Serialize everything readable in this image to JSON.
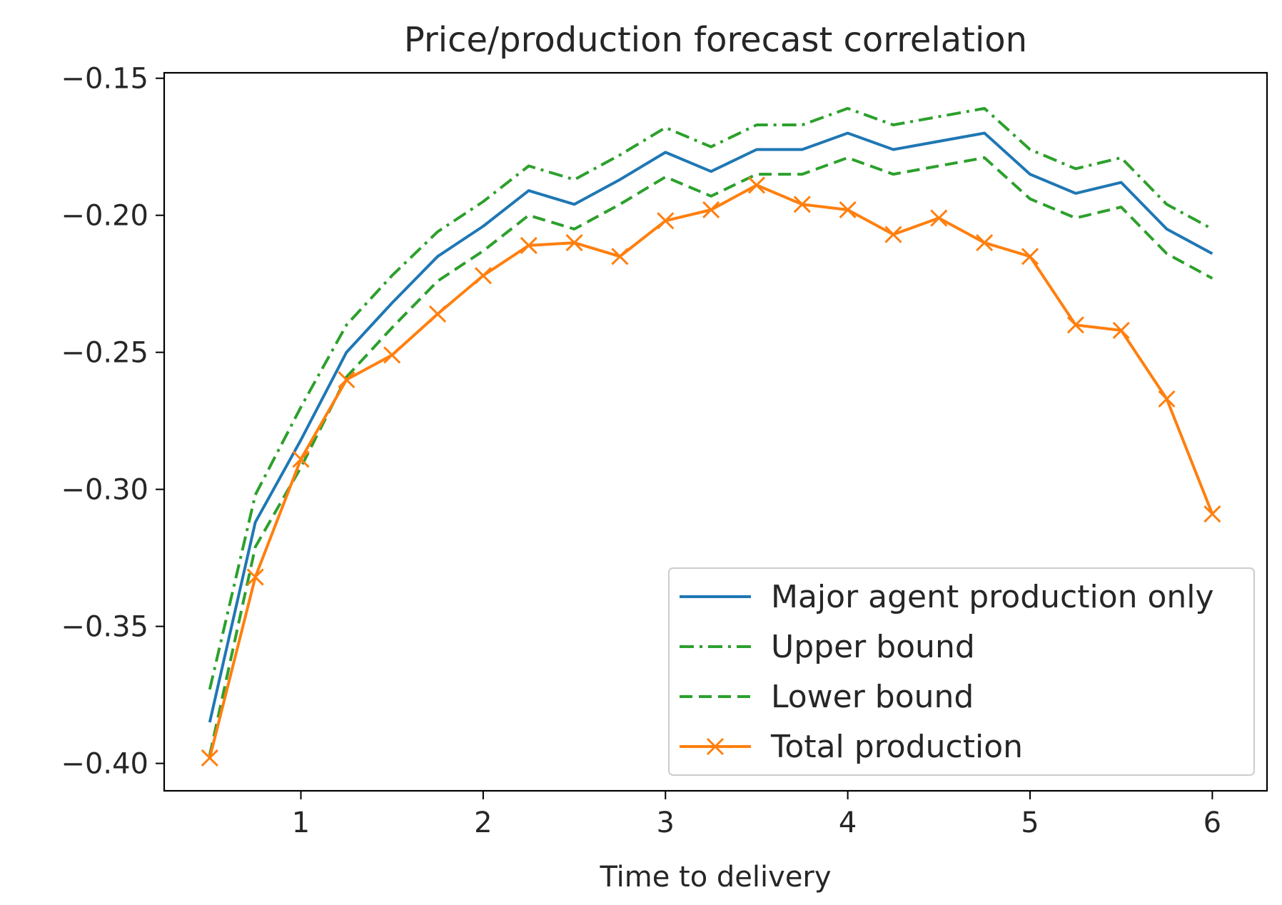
{
  "chart_data": {
    "type": "line",
    "title": "Price/production forecast correlation",
    "xlabel": "Time to delivery",
    "ylabel": "",
    "xlim": [
      0.25,
      6.3
    ],
    "ylim": [
      -0.41,
      -0.148
    ],
    "xticks": [
      1,
      2,
      3,
      4,
      5,
      6
    ],
    "xtick_labels": [
      "1",
      "2",
      "3",
      "4",
      "5",
      "6"
    ],
    "yticks": [
      -0.15,
      -0.2,
      -0.25,
      -0.3,
      -0.35,
      -0.4
    ],
    "ytick_labels": [
      "−0.15",
      "−0.20",
      "−0.25",
      "−0.30",
      "−0.35",
      "−0.40"
    ],
    "legend_position": "lower-right",
    "x": [
      0.5,
      0.75,
      1.0,
      1.25,
      1.5,
      1.75,
      2.0,
      2.25,
      2.5,
      2.75,
      3.0,
      3.25,
      3.5,
      3.75,
      4.0,
      4.25,
      4.5,
      4.75,
      5.0,
      5.25,
      5.5,
      5.75,
      6.0
    ],
    "series": [
      {
        "name": "Major agent production only",
        "color": "#1f77b4",
        "style": "solid",
        "marker": "none",
        "values": [
          -0.385,
          -0.312,
          -0.282,
          -0.25,
          -0.232,
          -0.215,
          -0.204,
          -0.191,
          -0.196,
          -0.187,
          -0.177,
          -0.184,
          -0.176,
          -0.176,
          -0.17,
          -0.176,
          -0.173,
          -0.17,
          -0.185,
          -0.192,
          -0.188,
          -0.205,
          -0.214
        ]
      },
      {
        "name": "Upper bound",
        "color": "#2ca02c",
        "style": "dashdot",
        "marker": "none",
        "values": [
          -0.373,
          -0.302,
          -0.27,
          -0.24,
          -0.222,
          -0.206,
          -0.195,
          -0.182,
          -0.187,
          -0.178,
          -0.168,
          -0.175,
          -0.167,
          -0.167,
          -0.161,
          -0.167,
          -0.164,
          -0.161,
          -0.176,
          -0.183,
          -0.179,
          -0.196,
          -0.205
        ]
      },
      {
        "name": "Lower bound",
        "color": "#2ca02c",
        "style": "dashed",
        "marker": "none",
        "values": [
          -0.397,
          -0.321,
          -0.292,
          -0.259,
          -0.241,
          -0.224,
          -0.213,
          -0.2,
          -0.205,
          -0.196,
          -0.186,
          -0.193,
          -0.185,
          -0.185,
          -0.179,
          -0.185,
          -0.182,
          -0.179,
          -0.194,
          -0.201,
          -0.197,
          -0.214,
          -0.223
        ]
      },
      {
        "name": "Total production",
        "color": "#ff7f0e",
        "style": "solid",
        "marker": "x",
        "values": [
          -0.398,
          -0.332,
          -0.289,
          -0.26,
          -0.251,
          -0.236,
          -0.222,
          -0.211,
          -0.21,
          -0.215,
          -0.202,
          -0.198,
          -0.189,
          -0.196,
          -0.198,
          -0.207,
          -0.201,
          -0.21,
          -0.215,
          -0.24,
          -0.242,
          -0.267,
          -0.309
        ]
      }
    ]
  }
}
